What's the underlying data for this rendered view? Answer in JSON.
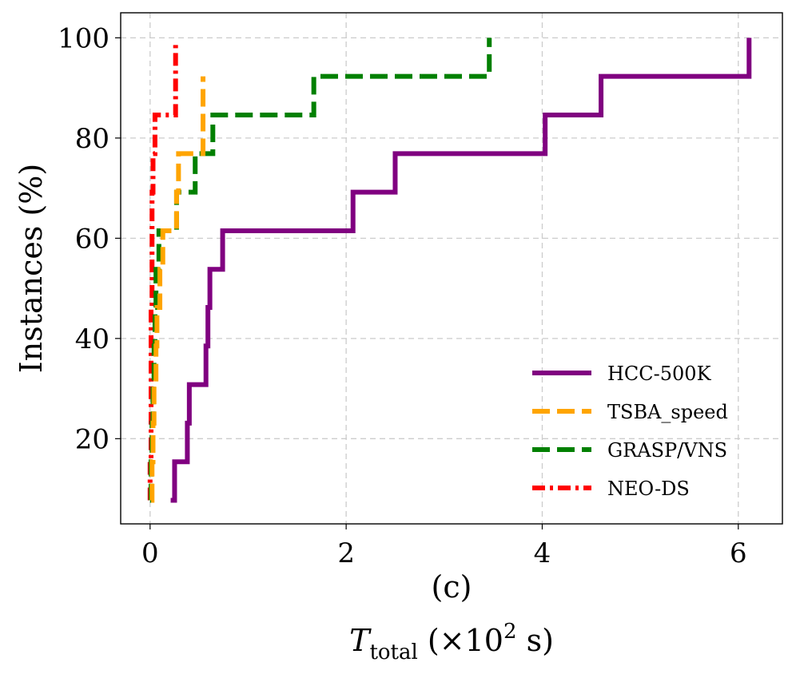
{
  "chart_data": {
    "type": "line",
    "subtitle": "(c)",
    "xlabel": "T_total (×10² s)",
    "xlabel_parts": {
      "symbol": "T",
      "subscript": "total",
      "prefix": " (×10",
      "superscript": "2",
      "suffix": " s)"
    },
    "ylabel": "Instances (%)",
    "xlim": [
      -0.3,
      6.45
    ],
    "ylim": [
      3,
      105
    ],
    "xticks": [
      0,
      2,
      4,
      6
    ],
    "xtick_labels": [
      "0",
      "2",
      "4",
      "6"
    ],
    "yticks": [
      20,
      40,
      60,
      80,
      100
    ],
    "ytick_labels": [
      "20",
      "40",
      "60",
      "80",
      "100"
    ],
    "grid": true,
    "legend_position": "lower-right",
    "step": "post",
    "series": [
      {
        "name": "HCC-500K",
        "color": "#800080",
        "style": "solid",
        "x": [
          0.21,
          0.25,
          0.38,
          0.4,
          0.57,
          0.59,
          0.61,
          0.74,
          2.07,
          2.5,
          4.03,
          4.6,
          6.11,
          6.11
        ],
        "y": [
          7.7,
          15.4,
          23.1,
          30.8,
          38.5,
          46.2,
          53.8,
          61.5,
          69.2,
          76.9,
          84.6,
          92.3,
          100,
          100
        ]
      },
      {
        "name": "TSBA_speed",
        "color": "#FFA500",
        "style": "dashed",
        "x": [
          0.01,
          0.02,
          0.03,
          0.04,
          0.06,
          0.07,
          0.1,
          0.13,
          0.27,
          0.29,
          0.54,
          0.54
        ],
        "y": [
          7.7,
          15.4,
          23.1,
          30.8,
          38.5,
          46.2,
          53.8,
          61.5,
          69.2,
          76.9,
          84.6,
          92.3
        ]
      },
      {
        "name": "GRASP/VNS",
        "color": "#008000",
        "style": "dashed",
        "x": [
          0.0,
          0.01,
          0.02,
          0.03,
          0.04,
          0.05,
          0.06,
          0.09,
          0.27,
          0.46,
          0.64,
          1.67,
          3.46,
          3.46
        ],
        "y": [
          7.7,
          15.4,
          23.1,
          30.8,
          38.5,
          46.2,
          53.8,
          61.5,
          69.2,
          76.9,
          84.6,
          92.3,
          100,
          100
        ]
      },
      {
        "name": "NEO-DS",
        "color": "#FF0000",
        "style": "dashdot",
        "x": [
          0.0,
          0.0,
          0.01,
          0.01,
          0.01,
          0.01,
          0.02,
          0.02,
          0.02,
          0.03,
          0.05,
          0.26,
          0.26
        ],
        "y": [
          7.7,
          15.4,
          23.1,
          30.8,
          38.5,
          46.2,
          53.8,
          61.5,
          69.2,
          76.9,
          84.6,
          92.3,
          99
        ]
      }
    ]
  }
}
